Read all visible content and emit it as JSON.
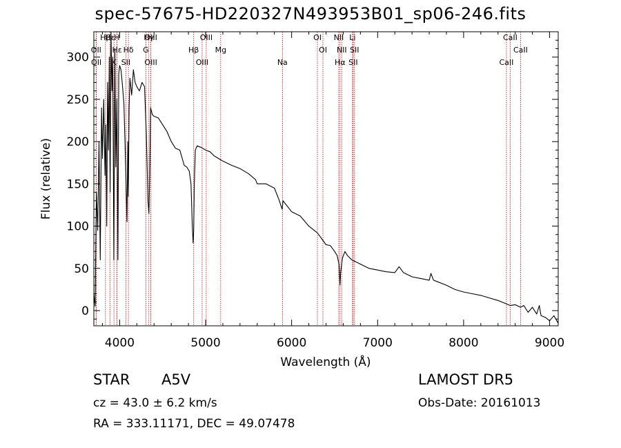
{
  "chart_data": {
    "type": "line",
    "title": "spec-57675-HD220327N493953B01_sp06-246.fits",
    "xlabel": "Wavelength (Å)",
    "ylabel": "Flux (relative)",
    "xlim": [
      3700,
      9100
    ],
    "ylim": [
      -18,
      330
    ],
    "x_ticks": [
      4000,
      5000,
      6000,
      7000,
      8000,
      9000
    ],
    "y_ticks": [
      0,
      50,
      100,
      150,
      200,
      250,
      300
    ],
    "grid": false,
    "series": [
      {
        "color": "#000000",
        "x": [
          3700,
          3715,
          3730,
          3745,
          3760,
          3775,
          3790,
          3800,
          3815,
          3830,
          3840,
          3850,
          3860,
          3870,
          3880,
          3889,
          3900,
          3910,
          3920,
          3933,
          3945,
          3955,
          3968,
          3980,
          3990,
          4000,
          4015,
          4030,
          4050,
          4070,
          4085,
          4095,
          4101,
          4110,
          4120,
          4140,
          4160,
          4180,
          4200,
          4230,
          4260,
          4290,
          4310,
          4330,
          4340,
          4350,
          4360,
          4380,
          4400,
          4450,
          4500,
          4550,
          4600,
          4650,
          4700,
          4750,
          4780,
          4810,
          4830,
          4845,
          4855,
          4861,
          4868,
          4880,
          4900,
          4950,
          5000,
          5050,
          5100,
          5150,
          5200,
          5300,
          5400,
          5500,
          5580,
          5600,
          5700,
          5800,
          5850,
          5890,
          5900,
          6000,
          6100,
          6200,
          6300,
          6400,
          6450,
          6500,
          6530,
          6550,
          6560,
          6563,
          6570,
          6590,
          6620,
          6650,
          6700,
          6800,
          6900,
          7000,
          7100,
          7200,
          7250,
          7300,
          7400,
          7500,
          7600,
          7620,
          7650,
          7700,
          7800,
          7900,
          8000,
          8100,
          8200,
          8300,
          8400,
          8498,
          8542,
          8600,
          8662,
          8700,
          8750,
          8800,
          8850,
          8880,
          8900,
          8950,
          9000,
          9050,
          9100
        ],
        "values": [
          20,
          5,
          140,
          95,
          200,
          60,
          240,
          180,
          250,
          160,
          220,
          100,
          270,
          190,
          300,
          140,
          330,
          260,
          300,
          60,
          310,
          170,
          250,
          60,
          280,
          290,
          285,
          270,
          245,
          170,
          105,
          200,
          135,
          240,
          275,
          255,
          285,
          270,
          265,
          260,
          270,
          265,
          210,
          130,
          115,
          160,
          240,
          232,
          230,
          228,
          220,
          212,
          200,
          192,
          190,
          172,
          170,
          165,
          150,
          100,
          80,
          95,
          150,
          190,
          195,
          193,
          190,
          188,
          183,
          180,
          177,
          172,
          168,
          162,
          155,
          150,
          150,
          145,
          132,
          120,
          130,
          117,
          112,
          100,
          92,
          78,
          77,
          70,
          65,
          55,
          36,
          30,
          45,
          62,
          70,
          65,
          60,
          55,
          50,
          48,
          46,
          45,
          52,
          45,
          40,
          38,
          36,
          44,
          36,
          34,
          30,
          25,
          22,
          20,
          18,
          15,
          12,
          8,
          6,
          7,
          4,
          6,
          -2,
          4,
          -4,
          6,
          -6,
          -8,
          -12,
          -6,
          -15
        ]
      }
    ],
    "lines": {
      "names": [
        "Hβ",
        "OII",
        "OII",
        "Hε",
        "Hε",
        "K",
        "H",
        "Hδ",
        "SII",
        "Hγ",
        "G",
        "OIII",
        "OIII",
        "Hβ",
        "OIII",
        "OIII",
        "Mg",
        "Na",
        "OI",
        "OI",
        "Hα",
        "NII",
        "NII",
        "SII",
        "Li",
        "SII",
        "CaII",
        "CaII",
        "CaII"
      ],
      "wavelengths": [
        3835,
        3727,
        3729,
        3889,
        3970,
        3934,
        3968,
        4102,
        4072,
        4340,
        4305,
        4363,
        4363,
        4861,
        4959,
        5007,
        5175,
        5893,
        6300,
        6364,
        6563,
        6548,
        6583,
        6716,
        6708,
        6731,
        8498,
        8542,
        8662
      ]
    }
  },
  "annotations": {
    "obj_class": "STAR",
    "obj_subclass": "A5V",
    "survey": "LAMOST DR5",
    "cz": "cz = 43.0 ± 6.2 km/s",
    "obs_date": "Obs-Date: 20161013",
    "radec": "RA = 333.11171, DEC =  49.07478"
  },
  "colors": {
    "spectrum": "#000000",
    "line_markers": "#cc0000",
    "axes": "#000000"
  }
}
